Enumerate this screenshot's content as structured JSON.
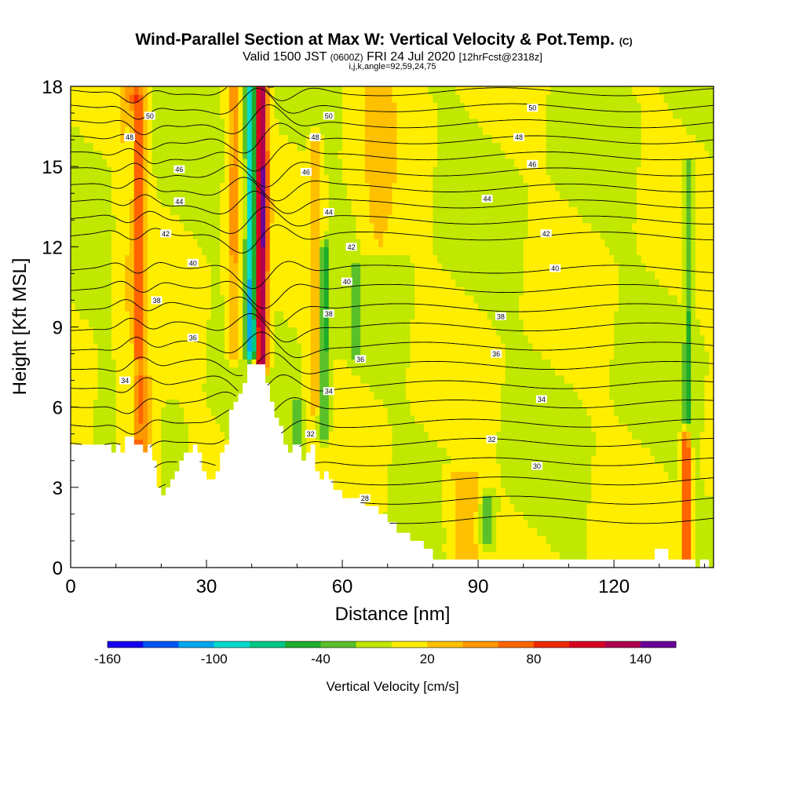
{
  "chart_data": {
    "type": "heatmap",
    "title": "Wind-Parallel Section at Max W: Vertical Velocity & Pot.Temp.",
    "title_mark": "(C)",
    "subtitle_parts": [
      "Valid 1500 JST",
      "(0600Z)",
      "FRI 24 Jul 2020",
      "[12hrFcst@2318z]"
    ],
    "subtitle2": "i,j,k,angle=92,59,24,75",
    "xlabel": "Distance [nm]",
    "ylabel": "Height [Kft MSL]",
    "xlim": [
      0,
      142
    ],
    "ylim": [
      0,
      18
    ],
    "x_ticks": [
      "0",
      "30",
      "60",
      "90",
      "120"
    ],
    "y_ticks": [
      "0",
      "3",
      "6",
      "9",
      "12",
      "15",
      "18"
    ],
    "colorbar": {
      "label": "Vertical Velocity [cm/s]",
      "ticks": [
        "-160",
        "-100",
        "-40",
        "20",
        "80",
        "140"
      ],
      "bins": [
        -160,
        -140,
        -120,
        -100,
        -80,
        -60,
        -40,
        -20,
        0,
        20,
        40,
        60,
        80,
        100,
        120,
        140,
        160
      ],
      "colors": [
        "#1500f0",
        "#0055f5",
        "#00a8ee",
        "#00dccc",
        "#00c886",
        "#1eac2c",
        "#5ac02a",
        "#c0e800",
        "#ffee00",
        "#ffc000",
        "#ff9800",
        "#ff6400",
        "#ee2a00",
        "#d80020",
        "#b00050",
        "#6a0098"
      ]
    },
    "background_w": 0,
    "updraft_plumes": [
      {
        "x": 14,
        "w": 2.5,
        "z0": 4,
        "z1": 18,
        "amp": 55
      },
      {
        "x": 15,
        "w": 1.3,
        "z0": 8,
        "z1": 17.5,
        "amp": 40
      },
      {
        "x": 36,
        "w": 1.5,
        "z0": 8,
        "z1": 18,
        "amp": 45
      },
      {
        "x": 42,
        "w": 1.5,
        "z0": 7.5,
        "z1": 18,
        "amp": 150
      },
      {
        "x": 54,
        "w": 1.3,
        "z0": 6,
        "z1": 16,
        "amp": 40
      },
      {
        "x": 68,
        "w": 4,
        "z0": 12,
        "z1": 18,
        "amp": 25
      },
      {
        "x": 87,
        "w": 4,
        "z0": 0.5,
        "z1": 3.5,
        "amp": 35
      },
      {
        "x": 136,
        "w": 0.9,
        "z0": 0.3,
        "z1": 5,
        "amp": 95
      },
      {
        "x": 16,
        "w": 3,
        "z0": 3,
        "z1": 7,
        "amp": 35
      }
    ],
    "downdraft_plumes": [
      {
        "x": 13.5,
        "w": 1.2,
        "z0": 5,
        "z1": 17,
        "amp": -45
      },
      {
        "x": 40,
        "w": 1.2,
        "z0": 8,
        "z1": 18,
        "amp": -130
      },
      {
        "x": 56,
        "w": 1.2,
        "z0": 5,
        "z1": 12,
        "amp": -50
      },
      {
        "x": 63,
        "w": 1.0,
        "z0": 8,
        "z1": 11,
        "amp": -35
      },
      {
        "x": 92,
        "w": 1.5,
        "z0": 1,
        "z1": 2.5,
        "amp": -45
      },
      {
        "x": 136.5,
        "w": 1.0,
        "z0": 5,
        "z1": 15,
        "amp": -40
      },
      {
        "x": 50,
        "w": 1.0,
        "z0": 4,
        "z1": 6,
        "amp": -40
      }
    ],
    "terrain_profile": {
      "x": [
        0,
        3,
        6,
        8,
        9,
        10,
        11,
        12,
        13,
        14,
        15,
        16,
        17,
        18,
        19,
        20,
        21,
        22,
        23,
        24,
        25,
        26,
        27,
        28,
        29,
        30,
        31,
        32,
        33,
        34,
        35,
        36,
        37,
        38,
        39,
        40,
        41,
        42,
        43,
        44,
        45,
        46,
        47,
        48,
        49,
        50,
        51,
        52,
        53,
        54,
        55,
        56,
        57,
        58,
        60,
        62,
        65,
        68,
        70,
        72,
        75,
        78,
        80,
        90,
        100,
        110,
        120,
        128,
        129,
        131,
        132,
        136,
        138,
        139,
        140,
        141,
        142
      ],
      "z": [
        4.6,
        4.6,
        4.6,
        4.6,
        4.3,
        4.6,
        4.3,
        4.9,
        4.9,
        4.6,
        4.6,
        4.3,
        4.6,
        4.0,
        3.0,
        2.7,
        3.0,
        3.3,
        3.6,
        4.0,
        4.3,
        4.3,
        4.6,
        4.3,
        3.6,
        3.3,
        3.3,
        3.6,
        4.3,
        4.6,
        5.9,
        6.2,
        6.5,
        6.9,
        7.6,
        7.6,
        7.6,
        7.6,
        6.9,
        6.2,
        5.6,
        5.3,
        4.6,
        4.3,
        4.6,
        4.6,
        4.0,
        4.3,
        4.6,
        3.6,
        3.3,
        3.6,
        3.3,
        2.9,
        2.6,
        2.6,
        2.3,
        2.0,
        1.7,
        1.3,
        1.0,
        0.7,
        0.3,
        0.3,
        0.3,
        0.3,
        0.3,
        0.3,
        0.7,
        0.7,
        0.3,
        0.3,
        0.0,
        0.3,
        0.3,
        0.0,
        0.3
      ]
    },
    "theta_contours": {
      "levels": [
        28,
        29,
        30,
        31,
        32,
        33,
        34,
        35,
        36,
        37,
        38,
        39,
        40,
        41,
        42,
        43,
        44,
        45,
        46,
        47,
        48,
        49,
        50,
        51,
        52,
        53
      ],
      "labels": [
        {
          "text": "28",
          "x": 65,
          "y": 2.6
        },
        {
          "text": "30",
          "x": 103,
          "y": 3.8
        },
        {
          "text": "32",
          "x": 53,
          "y": 5.0
        },
        {
          "text": "32",
          "x": 93,
          "y": 4.8
        },
        {
          "text": "34",
          "x": 12,
          "y": 7.0
        },
        {
          "text": "34",
          "x": 57,
          "y": 6.6
        },
        {
          "text": "34",
          "x": 104,
          "y": 6.3
        },
        {
          "text": "36",
          "x": 27,
          "y": 8.6
        },
        {
          "text": "36",
          "x": 64,
          "y": 7.8
        },
        {
          "text": "36",
          "x": 94,
          "y": 8.0
        },
        {
          "text": "38",
          "x": 19,
          "y": 10.0
        },
        {
          "text": "38",
          "x": 57,
          "y": 9.5
        },
        {
          "text": "38",
          "x": 95,
          "y": 9.4
        },
        {
          "text": "40",
          "x": 27,
          "y": 11.4
        },
        {
          "text": "40",
          "x": 61,
          "y": 10.7
        },
        {
          "text": "40",
          "x": 107,
          "y": 11.2
        },
        {
          "text": "42",
          "x": 21,
          "y": 12.5
        },
        {
          "text": "42",
          "x": 62,
          "y": 12.0
        },
        {
          "text": "42",
          "x": 105,
          "y": 12.5
        },
        {
          "text": "44",
          "x": 24,
          "y": 13.7
        },
        {
          "text": "44",
          "x": 57,
          "y": 13.3
        },
        {
          "text": "44",
          "x": 92,
          "y": 13.8
        },
        {
          "text": "46",
          "x": 24,
          "y": 14.9
        },
        {
          "text": "46",
          "x": 52,
          "y": 14.8
        },
        {
          "text": "46",
          "x": 102,
          "y": 15.1
        },
        {
          "text": "48",
          "x": 13,
          "y": 16.1
        },
        {
          "text": "48",
          "x": 54,
          "y": 16.1
        },
        {
          "text": "48",
          "x": 99,
          "y": 16.1
        },
        {
          "text": "50",
          "x": 17.5,
          "y": 16.9
        },
        {
          "text": "50",
          "x": 57,
          "y": 16.9
        },
        {
          "text": "50",
          "x": 102,
          "y": 17.2
        }
      ]
    }
  }
}
